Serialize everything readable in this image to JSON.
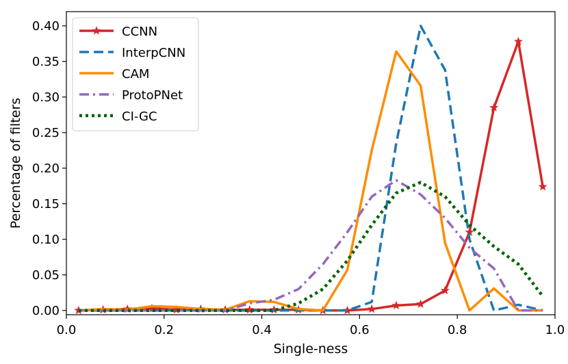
{
  "chart_data": {
    "type": "line",
    "title": "",
    "xlabel": "Single-ness",
    "ylabel": "Percentage of filters",
    "xlim": [
      0.0,
      1.0
    ],
    "ylim": [
      -0.006,
      0.42
    ],
    "xticks": [
      0.0,
      0.2,
      0.4,
      0.6,
      0.8,
      1.0
    ],
    "xtick_labels": [
      "0.0",
      "0.2",
      "0.4",
      "0.6",
      "0.8",
      "1.0"
    ],
    "yticks": [
      0.0,
      0.05,
      0.1,
      0.15,
      0.2,
      0.25,
      0.3,
      0.35,
      0.4
    ],
    "ytick_labels": [
      "0.00",
      "0.05",
      "0.10",
      "0.15",
      "0.20",
      "0.25",
      "0.30",
      "0.35",
      "0.40"
    ],
    "grid": false,
    "legend_position": "top-left",
    "x": [
      0.025,
      0.075,
      0.125,
      0.175,
      0.225,
      0.275,
      0.325,
      0.375,
      0.425,
      0.475,
      0.525,
      0.575,
      0.625,
      0.675,
      0.725,
      0.775,
      0.825,
      0.875,
      0.925,
      0.975
    ],
    "series": [
      {
        "name": "CCNN",
        "color": "#d62728",
        "style": "solid",
        "marker": "star",
        "values": [
          0.0,
          0.001,
          0.002,
          0.003,
          0.001,
          0.002,
          0.001,
          0.001,
          0.001,
          0.001,
          0.0,
          0.0,
          0.002,
          0.007,
          0.009,
          0.028,
          0.11,
          0.285,
          0.378,
          0.174
        ]
      },
      {
        "name": "InterpCNN",
        "color": "#1f77b4",
        "style": "dashed",
        "marker": "none",
        "values": [
          0.0,
          0.0,
          0.0,
          0.0,
          0.0,
          0.0,
          0.0,
          0.0,
          0.0,
          0.0,
          0.0,
          0.0,
          0.012,
          0.235,
          0.4,
          0.338,
          0.1,
          0.0,
          0.008,
          0.0
        ]
      },
      {
        "name": "CAM",
        "color": "#ff8c00",
        "style": "solid",
        "marker": "none",
        "values": [
          0.0,
          0.002,
          0.001,
          0.006,
          0.005,
          0.002,
          0.001,
          0.013,
          0.012,
          0.002,
          0.0,
          0.057,
          0.225,
          0.364,
          0.316,
          0.095,
          0.0,
          0.031,
          0.0,
          0.0
        ]
      },
      {
        "name": "ProtoPNet",
        "color": "#9467bd",
        "style": "dashdot",
        "marker": "none",
        "values": [
          0.0,
          0.0,
          0.0,
          0.0,
          0.0,
          0.0,
          0.0,
          0.01,
          0.015,
          0.03,
          0.065,
          0.11,
          0.16,
          0.183,
          0.163,
          0.13,
          0.088,
          0.059,
          0.0,
          0.0
        ]
      },
      {
        "name": "CI-GC",
        "color": "#006400",
        "style": "dotted",
        "marker": "none",
        "values": [
          0.0,
          0.0,
          0.0,
          0.0,
          0.0,
          0.0,
          0.0,
          0.0,
          0.0,
          0.01,
          0.03,
          0.07,
          0.12,
          0.165,
          0.18,
          0.16,
          0.12,
          0.09,
          0.065,
          0.02
        ]
      }
    ]
  }
}
